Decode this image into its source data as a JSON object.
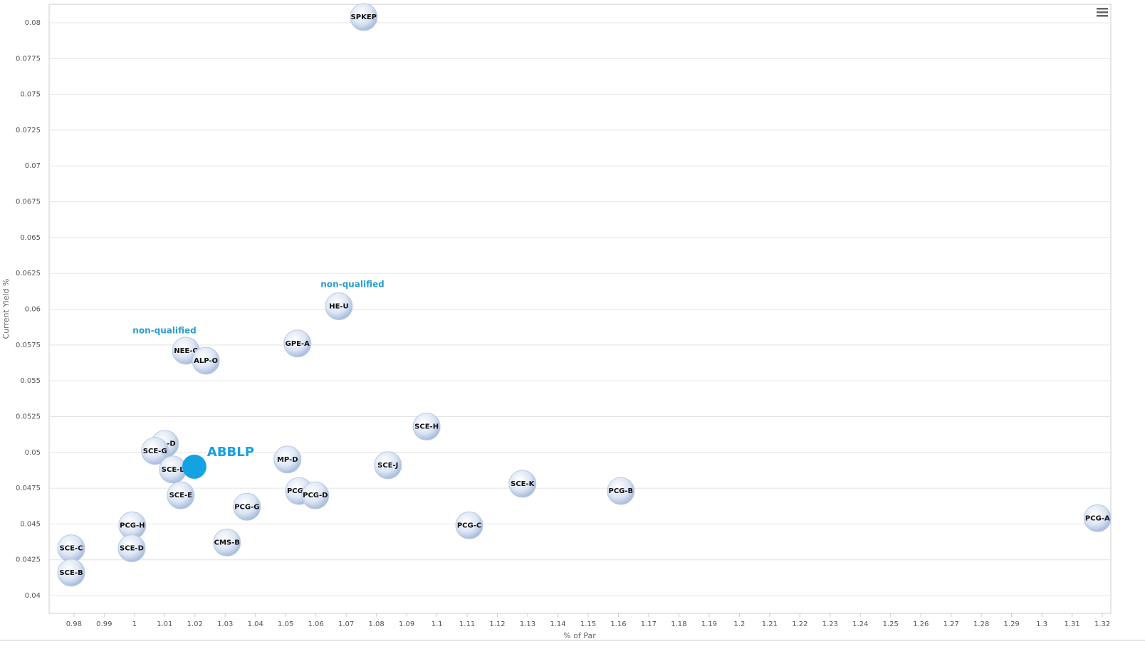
{
  "chart_data": {
    "type": "scatter",
    "x_label": "% of Par",
    "y_label": "Current Yield %",
    "xlim": [
      0.9718,
      1.3228
    ],
    "ylim": [
      0.03876,
      0.08129
    ],
    "xticks": [
      0.98,
      0.99,
      1,
      1.01,
      1.02,
      1.03,
      1.04,
      1.05,
      1.06,
      1.07,
      1.08,
      1.09,
      1.1,
      1.11,
      1.12,
      1.13,
      1.14,
      1.15,
      1.16,
      1.17,
      1.18,
      1.19,
      1.2,
      1.21,
      1.22,
      1.23,
      1.24,
      1.25,
      1.26,
      1.27,
      1.28,
      1.29,
      1.3,
      1.31,
      1.32
    ],
    "yticks": [
      0.04,
      0.0425,
      0.045,
      0.0475,
      0.05,
      0.0525,
      0.055,
      0.0575,
      0.06,
      0.0625,
      0.065,
      0.0675,
      0.07,
      0.0725,
      0.075,
      0.0775,
      0.08
    ],
    "grid": true,
    "annotations": [
      "non-qualified",
      "non-qualified"
    ],
    "series": [
      {
        "color": "#b9cbe6",
        "labels": [
          "SPKEP",
          "HE-U",
          "GPE-A",
          "NEE-C",
          "ALP-O",
          "SCE-H",
          "IPL-D",
          "SCE-G",
          "SCE-L",
          "MP-D",
          "SCE-J",
          "SCE-E",
          "PCG-E",
          "PCG-D",
          "SCE-K",
          "PCG-B",
          "PCG-G",
          "PCG-C",
          "PCG-A",
          "PCG-H",
          "CMS-B",
          "SCE-D",
          "SCE-C",
          "SCE-B"
        ],
        "x": [
          1.0758,
          1.0676,
          1.0539,
          1.017,
          1.0236,
          1.0966,
          1.0101,
          1.0068,
          1.0127,
          1.0506,
          1.0838,
          1.0153,
          1.0544,
          1.0598,
          1.1283,
          1.1608,
          1.0372,
          1.1107,
          1.3184,
          0.9993,
          1.0306,
          0.9991,
          0.9791,
          0.9791
        ],
        "values": [
          0.0804,
          0.0602,
          0.0576,
          0.0571,
          0.0564,
          0.0518,
          0.0506,
          0.0501,
          0.0488,
          0.0495,
          0.0491,
          0.047,
          0.0473,
          0.047,
          0.0478,
          0.0473,
          0.0462,
          0.0449,
          0.0454,
          0.0449,
          0.0437,
          0.0433,
          0.0433,
          0.0416
        ]
      },
      {
        "name": "ABBLP",
        "color": "#15a2e2",
        "x": [
          1.0198
        ],
        "values": [
          0.049
        ]
      }
    ]
  }
}
